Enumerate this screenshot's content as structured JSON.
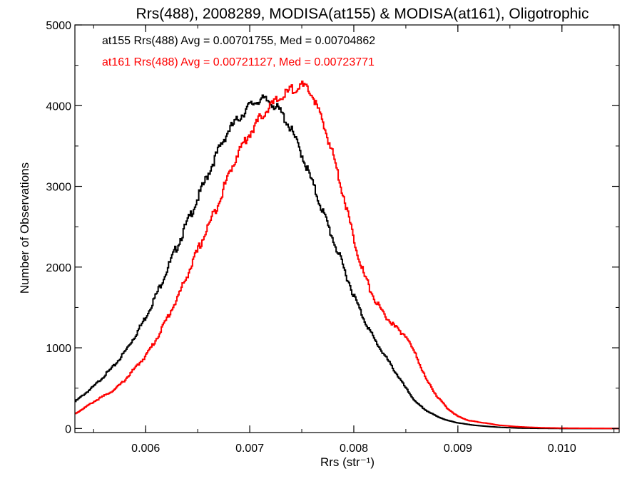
{
  "chart_data": {
    "type": "line",
    "title": "Rrs(488), 2008289, MODISA(at155) & MODISA(at161), Oligotrophic",
    "xlabel": "Rrs (str⁻¹)",
    "ylabel": "Number of Observations",
    "xlim": [
      0.00532,
      0.01055
    ],
    "ylim": [
      -50,
      5000
    ],
    "xticks": [
      0.006,
      0.007,
      0.008,
      0.009,
      0.01
    ],
    "xtick_labels": [
      "0.006",
      "0.007",
      "0.008",
      "0.009",
      "0.010"
    ],
    "yticks": [
      0,
      1000,
      2000,
      3000,
      4000,
      5000
    ],
    "ytick_labels": [
      "0",
      "1000",
      "2000",
      "3000",
      "4000",
      "5000"
    ],
    "grid": false,
    "legend": "top-left",
    "series": [
      {
        "name": "at155",
        "annotation": "at155 Rrs(488) Avg = 0.00701755, Med = 0.00704862",
        "color": "#000000",
        "x": [
          0.00532,
          0.0055,
          0.0057,
          0.0058,
          0.0059,
          0.006,
          0.0061,
          0.0062,
          0.0063,
          0.0064,
          0.0065,
          0.0066,
          0.0067,
          0.0068,
          0.0069,
          0.007,
          0.0071,
          0.0072,
          0.0073,
          0.0074,
          0.0075,
          0.0076,
          0.0077,
          0.0078,
          0.0079,
          0.008,
          0.0081,
          0.0082,
          0.0083,
          0.0084,
          0.0085,
          0.0086,
          0.0087,
          0.0088,
          0.0089,
          0.009,
          0.0091,
          0.0092,
          0.0093,
          0.0094,
          0.0095,
          0.0096,
          0.0098,
          0.01,
          0.01055
        ],
        "y": [
          330,
          520,
          780,
          950,
          1150,
          1380,
          1650,
          1950,
          2250,
          2550,
          2850,
          3150,
          3450,
          3700,
          3850,
          4000,
          4080,
          4050,
          3920,
          3700,
          3400,
          3050,
          2700,
          2350,
          2000,
          1650,
          1350,
          1100,
          900,
          700,
          500,
          320,
          220,
          150,
          100,
          70,
          50,
          35,
          25,
          15,
          10,
          5,
          2,
          0,
          0
        ]
      },
      {
        "name": "at161",
        "annotation": "at161 Rrs(488) Avg = 0.00721127, Med = 0.00723771",
        "color": "#ff0000",
        "x": [
          0.00532,
          0.0055,
          0.0057,
          0.0058,
          0.0059,
          0.006,
          0.0061,
          0.0062,
          0.0063,
          0.0064,
          0.0065,
          0.0066,
          0.0067,
          0.0068,
          0.0069,
          0.007,
          0.0071,
          0.0072,
          0.0073,
          0.0074,
          0.0075,
          0.0076,
          0.0077,
          0.0078,
          0.0079,
          0.008,
          0.0081,
          0.0082,
          0.0083,
          0.0084,
          0.0085,
          0.0086,
          0.0087,
          0.0088,
          0.0089,
          0.009,
          0.0091,
          0.0092,
          0.0093,
          0.0094,
          0.0095,
          0.0096,
          0.0098,
          0.01,
          0.01055
        ],
        "y": [
          180,
          330,
          480,
          600,
          750,
          900,
          1100,
          1350,
          1600,
          1900,
          2200,
          2500,
          2800,
          3150,
          3450,
          3650,
          3850,
          4000,
          4100,
          4200,
          4250,
          4150,
          3800,
          3400,
          2900,
          2350,
          1900,
          1600,
          1400,
          1250,
          1150,
          900,
          600,
          400,
          250,
          150,
          100,
          80,
          60,
          40,
          30,
          20,
          10,
          5,
          0
        ]
      }
    ]
  }
}
